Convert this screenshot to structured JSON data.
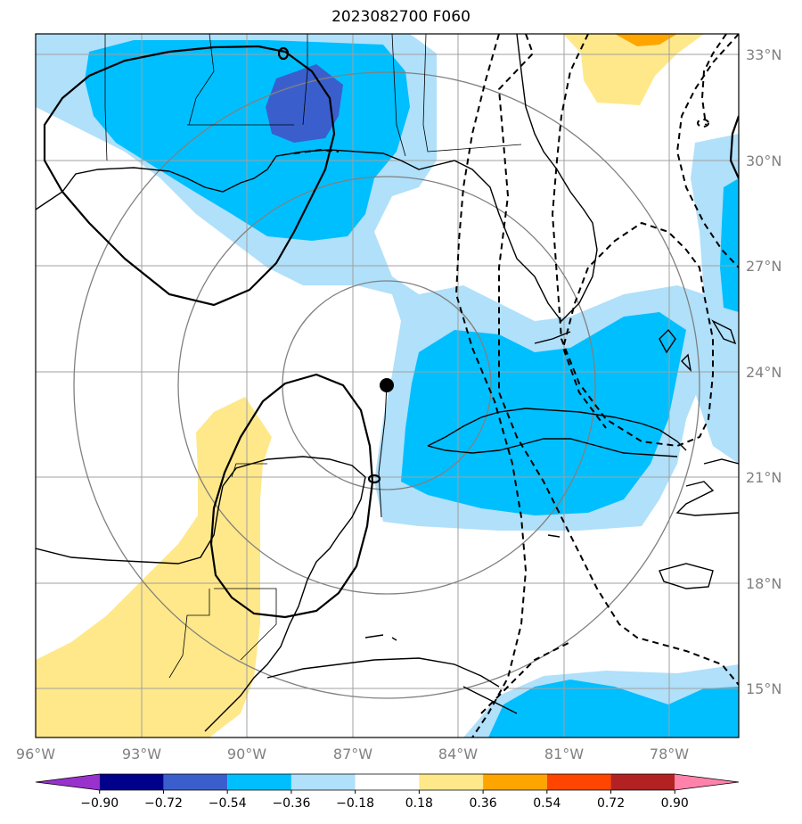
{
  "title": "2023082700 F060",
  "map": {
    "lon_ticks": [
      "96°W",
      "93°W",
      "90°W",
      "87°W",
      "84°W",
      "81°W",
      "78°W"
    ],
    "lon_values": [
      -96,
      -93,
      -90,
      -87,
      -84,
      -81,
      -78
    ],
    "lat_ticks": [
      "15°N",
      "18°N",
      "21°N",
      "24°N",
      "27°N",
      "30°N",
      "33°N"
    ],
    "lat_values": [
      15,
      18,
      21,
      24,
      27,
      30,
      33
    ],
    "storm_center": {
      "lon": -85.9,
      "lat": 23.6
    },
    "shading_colors": {
      "light_blue": "#b0e0fa",
      "blue": "#00bfff",
      "dark_blue": "#3a5fcd",
      "yellow": "#ffe88a",
      "orange": "#ffa500"
    }
  },
  "colorbar": {
    "labels": [
      "−0.90",
      "−0.72",
      "−0.54",
      "−0.36",
      "−0.18",
      "0.18",
      "0.36",
      "0.54",
      "0.72",
      "0.90"
    ],
    "colors": [
      "#9932cc",
      "#00008b",
      "#3a5fcd",
      "#00bfff",
      "#b0e0fa",
      "#ffffff",
      "#ffe88a",
      "#ffa500",
      "#ff4500",
      "#b22222",
      "#ff82ab"
    ]
  }
}
